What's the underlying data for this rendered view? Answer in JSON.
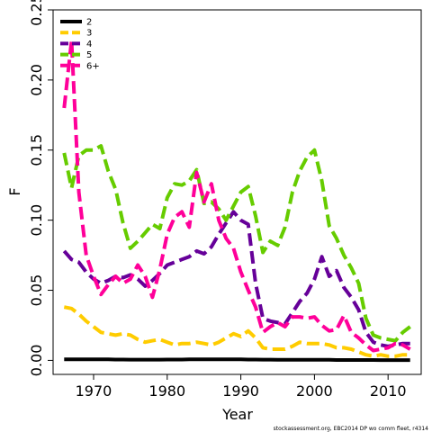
{
  "chart_data": {
    "type": "line",
    "xlabel": "Year",
    "ylabel": "F",
    "xlim": [
      1964.5,
      2014.5
    ],
    "ylim": [
      -0.01,
      0.25
    ],
    "x_ticks": [
      1970,
      1980,
      1990,
      2000,
      2010
    ],
    "y_ticks": [
      0.0,
      0.05,
      0.1,
      0.15,
      0.2,
      0.25
    ],
    "y_tick_labels": [
      "0.00",
      "0.05",
      "0.10",
      "0.15",
      "0.20",
      "0.25"
    ],
    "legend_position": "top-left",
    "x": [
      1966,
      1967,
      1968,
      1969,
      1970,
      1971,
      1972,
      1973,
      1974,
      1975,
      1976,
      1977,
      1978,
      1979,
      1980,
      1981,
      1982,
      1983,
      1984,
      1985,
      1986,
      1987,
      1988,
      1989,
      1990,
      1991,
      1992,
      1993,
      1994,
      1995,
      1996,
      1997,
      1998,
      1999,
      2000,
      2001,
      2002,
      2003,
      2004,
      2005,
      2006,
      2007,
      2008,
      2009,
      2010,
      2011,
      2012,
      2013
    ],
    "series": [
      {
        "name": "2",
        "color": "#000000",
        "values": [
          0.0008,
          0.0008,
          0.0008,
          0.0008,
          0.0007,
          0.0007,
          0.0007,
          0.0006,
          0.0006,
          0.0005,
          0.0005,
          0.0005,
          0.0005,
          0.0005,
          0.0006,
          0.0006,
          0.0006,
          0.0007,
          0.0008,
          0.0008,
          0.0008,
          0.0008,
          0.0008,
          0.0007,
          0.0007,
          0.0006,
          0.0006,
          0.0005,
          0.0005,
          0.0004,
          0.0004,
          0.0004,
          0.0004,
          0.0004,
          0.0004,
          0.0004,
          0.0004,
          0.0003,
          0.0003,
          0.0003,
          0.0003,
          0.0003,
          0.0003,
          0.0002,
          0.0002,
          0.0002,
          0.0002,
          0.0002
        ]
      },
      {
        "name": "3",
        "color": "#FFCC00",
        "values": [
          0.038,
          0.037,
          0.033,
          0.028,
          0.024,
          0.02,
          0.019,
          0.018,
          0.019,
          0.018,
          0.015,
          0.013,
          0.014,
          0.015,
          0.013,
          0.011,
          0.012,
          0.012,
          0.013,
          0.012,
          0.011,
          0.013,
          0.016,
          0.019,
          0.017,
          0.021,
          0.016,
          0.009,
          0.008,
          0.008,
          0.008,
          0.01,
          0.013,
          0.012,
          0.012,
          0.012,
          0.011,
          0.009,
          0.009,
          0.008,
          0.006,
          0.004,
          0.003,
          0.004,
          0.003,
          0.003,
          0.004,
          0.004
        ]
      },
      {
        "name": "4",
        "color": "#660099",
        "values": [
          0.078,
          0.072,
          0.07,
          0.063,
          0.058,
          0.055,
          0.057,
          0.06,
          0.059,
          0.061,
          0.058,
          0.053,
          0.057,
          0.062,
          0.068,
          0.07,
          0.072,
          0.074,
          0.078,
          0.076,
          0.081,
          0.09,
          0.098,
          0.106,
          0.1,
          0.097,
          0.055,
          0.03,
          0.028,
          0.027,
          0.026,
          0.034,
          0.042,
          0.048,
          0.058,
          0.074,
          0.06,
          0.064,
          0.052,
          0.045,
          0.036,
          0.02,
          0.013,
          0.011,
          0.01,
          0.011,
          0.012,
          0.012
        ]
      },
      {
        "name": "5",
        "color": "#66CC00",
        "values": [
          0.148,
          0.123,
          0.146,
          0.15,
          0.15,
          0.153,
          0.135,
          0.122,
          0.098,
          0.08,
          0.085,
          0.091,
          0.097,
          0.094,
          0.116,
          0.126,
          0.125,
          0.128,
          0.136,
          0.112,
          0.113,
          0.108,
          0.1,
          0.11,
          0.12,
          0.124,
          0.103,
          0.077,
          0.085,
          0.082,
          0.095,
          0.12,
          0.135,
          0.145,
          0.15,
          0.128,
          0.096,
          0.087,
          0.075,
          0.066,
          0.055,
          0.03,
          0.018,
          0.016,
          0.015,
          0.014,
          0.02,
          0.024
        ]
      },
      {
        "name": "6+",
        "color": "#FF0099",
        "values": [
          0.18,
          0.228,
          0.12,
          0.075,
          0.06,
          0.047,
          0.054,
          0.06,
          0.055,
          0.058,
          0.068,
          0.06,
          0.045,
          0.065,
          0.09,
          0.102,
          0.106,
          0.095,
          0.134,
          0.113,
          0.126,
          0.1,
          0.087,
          0.08,
          0.063,
          0.05,
          0.038,
          0.02,
          0.024,
          0.027,
          0.024,
          0.031,
          0.031,
          0.03,
          0.031,
          0.025,
          0.021,
          0.022,
          0.032,
          0.02,
          0.016,
          0.011,
          0.007,
          0.008,
          0.009,
          0.012,
          0.011,
          0.008
        ]
      }
    ],
    "footnote": "stockassessment.org, EBC2014 DP wo comm fleet, r4314"
  }
}
